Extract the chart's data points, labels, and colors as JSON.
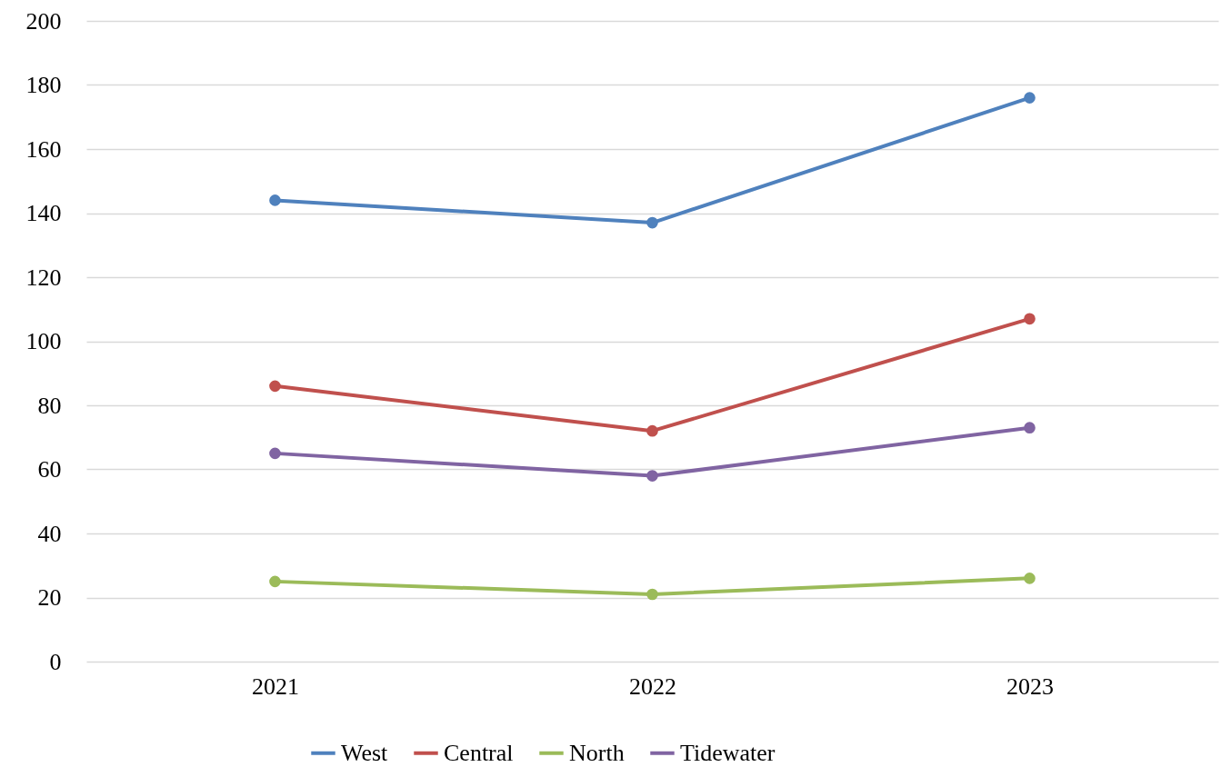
{
  "chart_data": {
    "type": "line",
    "categories": [
      "2021",
      "2022",
      "2023"
    ],
    "series": [
      {
        "name": "West",
        "color": "#4f81bd",
        "values": [
          144,
          137,
          176
        ]
      },
      {
        "name": "Central",
        "color": "#c0504d",
        "values": [
          86,
          72,
          107
        ]
      },
      {
        "name": "North",
        "color": "#9bbb59",
        "values": [
          25,
          21,
          26
        ]
      },
      {
        "name": "Tidewater",
        "color": "#8064a2",
        "values": [
          65,
          58,
          73
        ]
      }
    ],
    "ylim": [
      0,
      200
    ],
    "yticks": [
      0,
      20,
      40,
      60,
      80,
      100,
      120,
      140,
      160,
      180,
      200
    ],
    "grid": "y",
    "legend": "bottom",
    "marker": "circle",
    "line_style": "solid"
  }
}
